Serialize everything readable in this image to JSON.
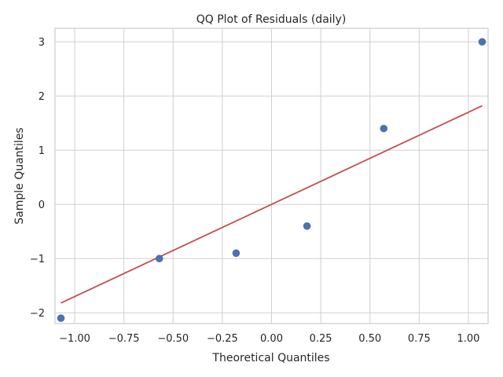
{
  "chart_data": {
    "type": "scatter",
    "title": "QQ Plot of Residuals (daily)",
    "xlabel": "Theoretical Quantiles",
    "ylabel": "Sample Quantiles",
    "xlim": [
      -1.1,
      1.1
    ],
    "ylim": [
      -2.2,
      3.25
    ],
    "x_ticks": [
      -1.0,
      -0.75,
      -0.5,
      -0.25,
      0.0,
      0.25,
      0.5,
      0.75,
      1.0
    ],
    "x_tick_labels": [
      "−1.00",
      "−0.75",
      "−0.50",
      "−0.25",
      "0.00",
      "0.25",
      "0.50",
      "0.75",
      "1.00"
    ],
    "y_ticks": [
      -2,
      -1,
      0,
      1,
      2,
      3
    ],
    "y_tick_labels": [
      "−2",
      "−1",
      "0",
      "1",
      "2",
      "3"
    ],
    "grid": true,
    "series": [
      {
        "type": "scatter",
        "color": "#4c72b0",
        "points": [
          {
            "x": -1.07,
            "y": -2.1
          },
          {
            "x": -0.57,
            "y": -1.0
          },
          {
            "x": -0.18,
            "y": -0.9
          },
          {
            "x": 0.18,
            "y": -0.4
          },
          {
            "x": 0.57,
            "y": 1.4
          },
          {
            "x": 1.07,
            "y": 3.0
          }
        ]
      },
      {
        "type": "line",
        "color": "#c44e52",
        "points": [
          {
            "x": -1.07,
            "y": -1.82
          },
          {
            "x": 1.07,
            "y": 1.82
          }
        ]
      }
    ]
  }
}
